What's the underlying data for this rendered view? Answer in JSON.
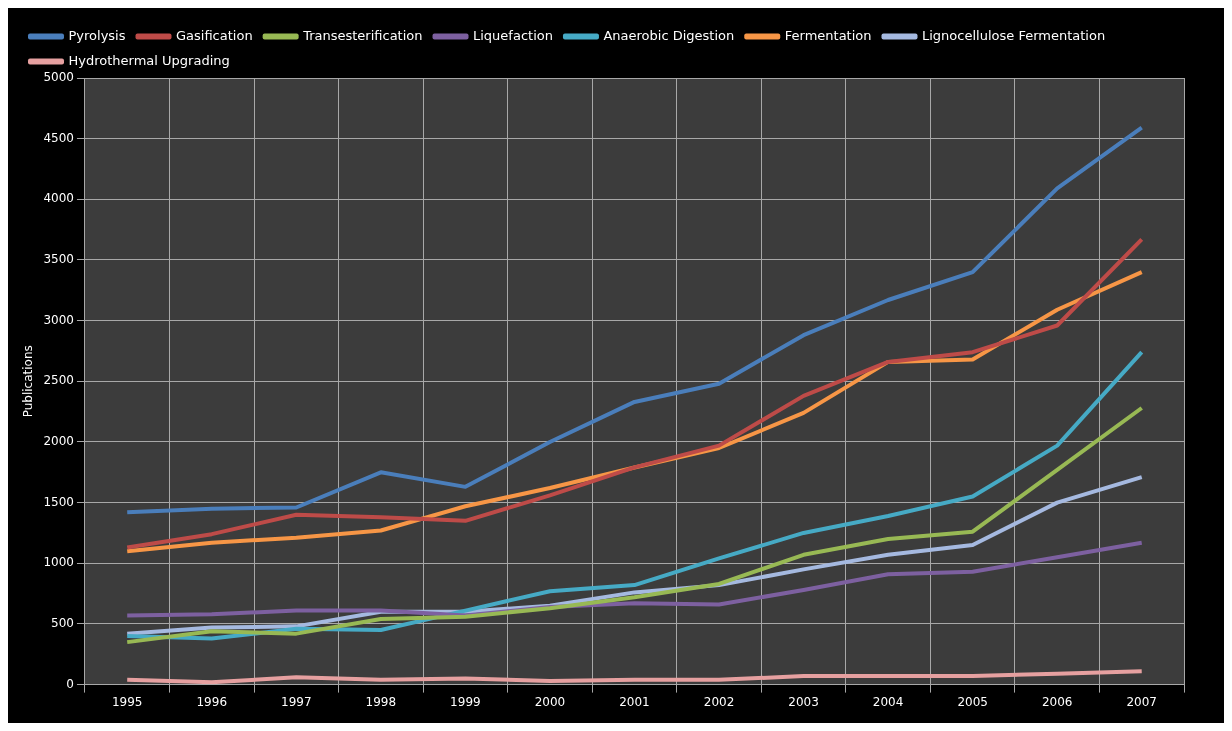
{
  "chart_data": {
    "type": "line",
    "ylabel": "Publications",
    "categories": [
      "1995",
      "1996",
      "1997",
      "1998",
      "1999",
      "2000",
      "2001",
      "2002",
      "2003",
      "2004",
      "2005",
      "2006",
      "2007"
    ],
    "series": [
      {
        "name": "Pyrolysis",
        "color": "#4a7ebb",
        "values": [
          1420,
          1450,
          1460,
          1750,
          1630,
          2000,
          2330,
          2480,
          2880,
          3170,
          3400,
          4090,
          4590
        ]
      },
      {
        "name": "Gasification",
        "color": "#be4b48",
        "values": [
          1130,
          1240,
          1400,
          1380,
          1350,
          1560,
          1790,
          1970,
          2380,
          2660,
          2740,
          2960,
          3670
        ]
      },
      {
        "name": "Transesterification",
        "color": "#98b954",
        "values": [
          350,
          440,
          420,
          540,
          560,
          630,
          720,
          830,
          1070,
          1200,
          1260,
          1770,
          2280
        ]
      },
      {
        "name": "Liquefaction",
        "color": "#7d60a0",
        "values": [
          570,
          580,
          610,
          610,
          570,
          640,
          670,
          660,
          780,
          910,
          930,
          1050,
          1170
        ]
      },
      {
        "name": "Anaerobic Digestion",
        "color": "#46aac5",
        "values": [
          400,
          380,
          460,
          450,
          610,
          770,
          820,
          1040,
          1250,
          1390,
          1550,
          1970,
          2740
        ]
      },
      {
        "name": "Fermentation",
        "color": "#f79646",
        "values": [
          1100,
          1170,
          1210,
          1270,
          1470,
          1620,
          1790,
          1950,
          2240,
          2660,
          2680,
          3090,
          3400
        ]
      },
      {
        "name": "Lignocellulose Fermentation",
        "color": "#a5b9e0",
        "values": [
          420,
          470,
          480,
          600,
          600,
          650,
          760,
          820,
          950,
          1070,
          1150,
          1500,
          1710
        ]
      },
      {
        "name": "Hydrothermal Upgrading",
        "color": "#e6a0a0",
        "values": [
          40,
          20,
          60,
          40,
          50,
          30,
          40,
          40,
          70,
          70,
          70,
          90,
          110
        ]
      }
    ],
    "ylim": [
      0,
      5000
    ],
    "yticks": [
      0,
      500,
      1000,
      1500,
      2000,
      2500,
      3000,
      3500,
      4000,
      4500,
      5000
    ],
    "grid": true,
    "legend": "top",
    "marker": "none",
    "line_style": "solid"
  }
}
